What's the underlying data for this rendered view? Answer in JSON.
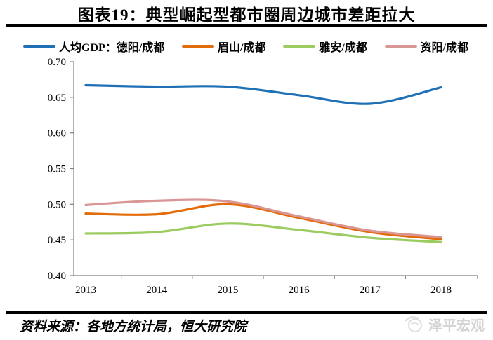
{
  "title": "图表19：典型崛起型都市圈周边城市差距拉大",
  "legend": {
    "items": [
      {
        "label": "人均GDP：德阳/成都",
        "color": "#1F70B5"
      },
      {
        "label": "眉山/成都",
        "color": "#E36C0A"
      },
      {
        "label": "雅安/成都",
        "color": "#9CCB5F"
      },
      {
        "label": "资阳/成都",
        "color": "#D99694"
      }
    ]
  },
  "chart_data": {
    "type": "line",
    "title": "图表19：典型崛起型都市圈周边城市差距拉大",
    "x": [
      "2013",
      "2014",
      "2015",
      "2016",
      "2017",
      "2018"
    ],
    "series": [
      {
        "name": "人均GDP：德阳/成都",
        "color": "#1F70B5",
        "values": [
          0.667,
          0.665,
          0.665,
          0.653,
          0.641,
          0.664
        ]
      },
      {
        "name": "眉山/成都",
        "color": "#E36C0A",
        "values": [
          0.487,
          0.486,
          0.5,
          0.481,
          0.461,
          0.451
        ]
      },
      {
        "name": "雅安/成都",
        "color": "#9CCB5F",
        "values": [
          0.459,
          0.461,
          0.473,
          0.464,
          0.453,
          0.447
        ]
      },
      {
        "name": "资阳/成都",
        "color": "#D99694",
        "values": [
          0.499,
          0.505,
          0.504,
          0.483,
          0.463,
          0.454
        ]
      }
    ],
    "xlabel": "",
    "ylabel": "",
    "ylim": [
      0.4,
      0.7
    ],
    "ytick_step": 0.05,
    "ytick_format_decimals": 2,
    "grid": false,
    "legend_position": "top",
    "axis_color": "#808080"
  },
  "footer": {
    "source": "资料来源：各地方统计局，恒大研究院",
    "watermark": "泽平宏观"
  }
}
